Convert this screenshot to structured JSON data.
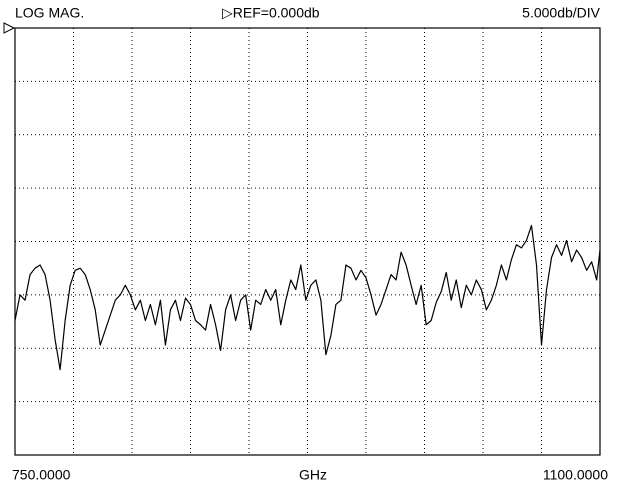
{
  "chart_data": {
    "type": "line",
    "title": "LOG MAG.",
    "reference": "▷REF=0.000db",
    "scale": "5.000db/DIV",
    "xlabel": "GHz",
    "color": "#000000",
    "grid": true,
    "xlim": [
      750,
      1100
    ],
    "ylim": [
      -40,
      0
    ],
    "xticks": [
      {
        "value": 750,
        "label": "750.0000"
      },
      {
        "value": 785,
        "label": null
      },
      {
        "value": 820,
        "label": null
      },
      {
        "value": 855,
        "label": null
      },
      {
        "value": 890,
        "label": null
      },
      {
        "value": 925,
        "label": null
      },
      {
        "value": 960,
        "label": null
      },
      {
        "value": 995,
        "label": null
      },
      {
        "value": 1030,
        "label": null
      },
      {
        "value": 1065,
        "label": null
      },
      {
        "value": 1100,
        "label": "1100.0000"
      }
    ],
    "yticks": [
      {
        "value": 0,
        "label": null
      },
      {
        "value": -5,
        "label": null
      },
      {
        "value": -10,
        "label": null
      },
      {
        "value": -15,
        "label": null
      },
      {
        "value": -20,
        "label": null
      },
      {
        "value": -25,
        "label": null
      },
      {
        "value": -30,
        "label": null
      },
      {
        "value": -35,
        "label": null
      },
      {
        "value": -40,
        "label": null
      }
    ],
    "x": [
      750,
      753,
      756,
      759,
      762,
      765,
      768,
      771,
      774,
      777,
      780,
      783,
      786,
      789,
      792,
      795,
      798,
      801,
      804,
      807,
      810,
      813,
      816,
      819,
      822,
      825,
      828,
      831,
      834,
      837,
      840,
      843,
      846,
      849,
      852,
      855,
      858,
      861,
      864,
      867,
      870,
      873,
      876,
      879,
      882,
      885,
      888,
      891,
      894,
      897,
      900,
      903,
      906,
      909,
      912,
      915,
      918,
      921,
      924,
      927,
      930,
      933,
      936,
      939,
      942,
      945,
      948,
      951,
      954,
      957,
      960,
      963,
      966,
      969,
      972,
      975,
      978,
      981,
      984,
      987,
      990,
      993,
      996,
      999,
      1002,
      1005,
      1008,
      1011,
      1014,
      1017,
      1020,
      1023,
      1026,
      1029,
      1032,
      1035,
      1038,
      1041,
      1044,
      1047,
      1050,
      1053,
      1056,
      1059,
      1062,
      1065,
      1068,
      1071,
      1074,
      1077,
      1080,
      1083,
      1086,
      1089,
      1092,
      1095,
      1098,
      1100
    ],
    "values": [
      -27.4,
      -25.0,
      -25.5,
      -23.1,
      -22.5,
      -22.2,
      -23.1,
      -25.5,
      -29.2,
      -32.0,
      -27.4,
      -24.1,
      -22.7,
      -22.5,
      -23.1,
      -24.5,
      -26.4,
      -29.7,
      -28.3,
      -26.9,
      -25.5,
      -25.0,
      -24.1,
      -25.0,
      -26.4,
      -25.5,
      -27.4,
      -25.9,
      -27.8,
      -25.5,
      -29.7,
      -26.4,
      -25.5,
      -27.4,
      -25.3,
      -25.9,
      -27.4,
      -27.8,
      -28.3,
      -25.9,
      -27.8,
      -30.2,
      -26.4,
      -25.0,
      -27.4,
      -25.5,
      -25.0,
      -28.3,
      -25.5,
      -25.9,
      -24.5,
      -25.5,
      -24.5,
      -27.8,
      -25.5,
      -23.6,
      -24.5,
      -22.2,
      -25.5,
      -24.1,
      -23.6,
      -25.5,
      -30.6,
      -28.8,
      -25.9,
      -25.5,
      -22.2,
      -22.5,
      -23.6,
      -22.7,
      -23.4,
      -25.0,
      -26.9,
      -25.9,
      -24.5,
      -23.1,
      -23.6,
      -21.0,
      -22.2,
      -24.1,
      -25.9,
      -24.1,
      -27.8,
      -27.4,
      -25.7,
      -24.7,
      -22.9,
      -25.5,
      -23.6,
      -26.2,
      -24.1,
      -25.0,
      -23.6,
      -24.5,
      -26.4,
      -25.5,
      -24.1,
      -22.2,
      -23.6,
      -21.7,
      -20.3,
      -20.6,
      -19.9,
      -18.5,
      -22.2,
      -29.7,
      -24.5,
      -21.5,
      -20.3,
      -21.3,
      -19.9,
      -21.9,
      -20.8,
      -21.5,
      -22.7,
      -21.9,
      -23.6,
      -20.8
    ]
  }
}
